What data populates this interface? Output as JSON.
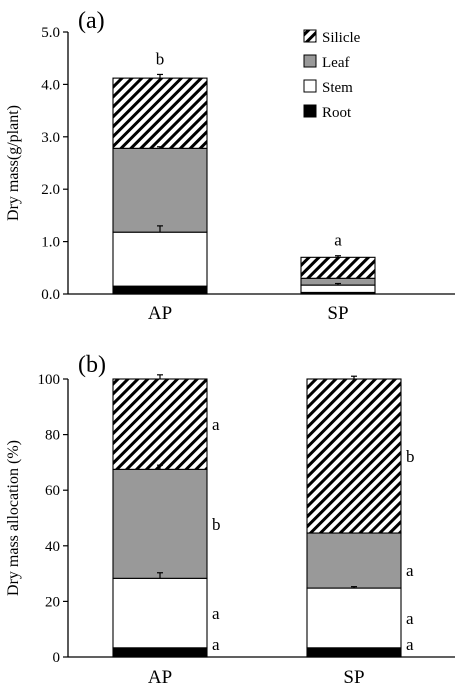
{
  "chart_data": [
    {
      "type": "bar",
      "stacked": true,
      "panel_label": "(a)",
      "title": "",
      "xlabel": "",
      "ylabel": "Dry mass(g/plant)",
      "ylim": [
        0,
        5.0
      ],
      "yticks": [
        "0.0",
        "1.0",
        "2.0",
        "3.0",
        "4.0",
        "5.0"
      ],
      "categories": [
        "AP",
        "SP"
      ],
      "series": [
        {
          "name": "Root",
          "values": [
            0.15,
            0.03
          ]
        },
        {
          "name": "Stem",
          "values": [
            1.03,
            0.14
          ]
        },
        {
          "name": "Leaf",
          "values": [
            1.6,
            0.13
          ]
        },
        {
          "name": "Silicle",
          "values": [
            1.34,
            0.4
          ]
        }
      ],
      "error_bars": [
        {
          "series": "Stem",
          "values": [
            0.12,
            0.03
          ]
        },
        {
          "series": "Leaf",
          "values": [
            0.03,
            0.0
          ]
        },
        {
          "series": "Silicle",
          "values": [
            0.07,
            0.03
          ]
        }
      ],
      "annotations": [
        {
          "category": "AP",
          "text": "b"
        },
        {
          "category": "SP",
          "text": "a"
        }
      ],
      "legend": {
        "placement": "top-right",
        "items": [
          "Silicle",
          "Leaf",
          "Stem",
          "Root"
        ]
      }
    },
    {
      "type": "bar",
      "stacked": true,
      "panel_label": "(b)",
      "title": "",
      "xlabel": "",
      "ylabel": "Dry mass allocation (%)",
      "ylim": [
        0,
        100
      ],
      "yticks": [
        "0",
        "20",
        "40",
        "60",
        "80",
        "100"
      ],
      "categories": [
        "AP",
        "SP"
      ],
      "series": [
        {
          "name": "Root",
          "values": [
            3.3,
            3.3
          ]
        },
        {
          "name": "Stem",
          "values": [
            25.0,
            21.5
          ]
        },
        {
          "name": "Leaf",
          "values": [
            39.2,
            19.8
          ]
        },
        {
          "name": "Silicle",
          "values": [
            32.5,
            55.4
          ]
        }
      ],
      "error_bars": [
        {
          "series": "Stem",
          "values": [
            2.0,
            0.5
          ]
        },
        {
          "series": "Leaf",
          "values": [
            1.5,
            0.0
          ]
        },
        {
          "series": "Silicle",
          "values": [
            1.5,
            1.0
          ]
        }
      ],
      "annotations": [
        {
          "category": "AP",
          "series": "Root",
          "text": "a"
        },
        {
          "category": "AP",
          "series": "Stem",
          "text": "a"
        },
        {
          "category": "AP",
          "series": "Leaf",
          "text": "b"
        },
        {
          "category": "AP",
          "series": "Silicle",
          "text": "a"
        },
        {
          "category": "SP",
          "series": "Root",
          "text": "a"
        },
        {
          "category": "SP",
          "series": "Stem",
          "text": "a"
        },
        {
          "category": "SP",
          "series": "Leaf",
          "text": "a"
        },
        {
          "category": "SP",
          "series": "Silicle",
          "text": "b"
        }
      ]
    }
  ],
  "colors": {
    "Root": "#000000",
    "Stem": "#ffffff",
    "Leaf": "#999999",
    "Silicle": "hatch"
  }
}
